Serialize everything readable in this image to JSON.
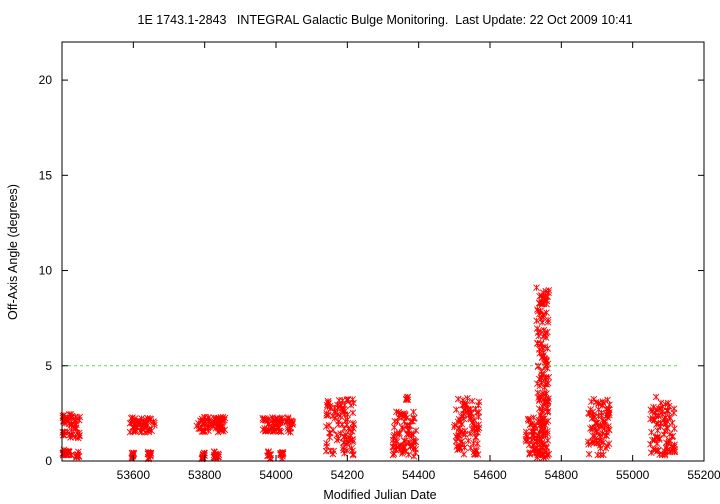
{
  "chart_data": {
    "type": "scatter",
    "title": "1E 1743.1-2843   INTEGRAL Galactic Bulge Monitoring.  Last Update: 22 Oct 2009 10:41",
    "xlabel": "Modified Julian Date",
    "ylabel": "Off-Axis Angle (degrees)",
    "xlim": [
      53400,
      55200
    ],
    "ylim": [
      0,
      22
    ],
    "x_ticks": [
      53600,
      53800,
      54000,
      54200,
      54400,
      54600,
      54800,
      55000,
      55200
    ],
    "y_ticks": [
      0,
      5,
      10,
      15,
      20
    ],
    "grid": false,
    "colors": {
      "points": "#ff0000",
      "reference_line": "#55dd55",
      "axes": "#000000"
    },
    "reference_line": {
      "y": 5,
      "x_start": 53400,
      "x_end": 55130
    },
    "series": [
      {
        "marker": "x-cross",
        "visits": [
          {
            "x_range": [
              53402,
              53450
            ],
            "y_range": [
              1.2,
              2.5
            ]
          },
          {
            "x_range": [
              53402,
              53428
            ],
            "y_range": [
              0.3,
              0.6
            ]
          },
          {
            "x_range": [
              53440,
              53448
            ],
            "y_range": [
              0.1,
              0.5
            ]
          },
          {
            "x_range": [
              53590,
              53660
            ],
            "y_range": [
              1.5,
              2.3
            ]
          },
          {
            "x_range": [
              53595,
              53602
            ],
            "y_range": [
              0.1,
              0.5
            ]
          },
          {
            "x_range": [
              53640,
              53650
            ],
            "y_range": [
              0.1,
              0.5
            ]
          },
          {
            "x_range": [
              53775,
              53860
            ],
            "y_range": [
              1.5,
              2.3
            ]
          },
          {
            "x_range": [
              53790,
              53800
            ],
            "y_range": [
              0.1,
              0.5
            ]
          },
          {
            "x_range": [
              53825,
              53840
            ],
            "y_range": [
              0.1,
              0.5
            ]
          },
          {
            "x_range": [
              53960,
              54050
            ],
            "y_range": [
              1.5,
              2.3
            ]
          },
          {
            "x_range": [
              53975,
              53985
            ],
            "y_range": [
              0.1,
              0.5
            ]
          },
          {
            "x_range": [
              54010,
              54020
            ],
            "y_range": [
              0.1,
              0.5
            ]
          },
          {
            "x_range": [
              54140,
              54220
            ],
            "y_range": [
              0.3,
              3.3
            ]
          },
          {
            "x_range": [
              54325,
              54395
            ],
            "y_range": [
              0.2,
              2.6
            ]
          },
          {
            "x_range": [
              54365,
              54370
            ],
            "y_range": [
              3.2,
              3.4
            ]
          },
          {
            "x_range": [
              54500,
              54570
            ],
            "y_range": [
              0.3,
              3.3
            ]
          },
          {
            "x_range": [
              54700,
              54760
            ],
            "y_range": [
              0.3,
              2.3
            ]
          },
          {
            "x_range": [
              54730,
              54765
            ],
            "y_range": [
              0.1,
              9.1
            ]
          },
          {
            "x_range": [
              54875,
              54935
            ],
            "y_range": [
              0.3,
              3.3
            ]
          },
          {
            "x_range": [
              55050,
              55120
            ],
            "y_range": [
              0.3,
              3.4
            ]
          }
        ]
      }
    ]
  }
}
